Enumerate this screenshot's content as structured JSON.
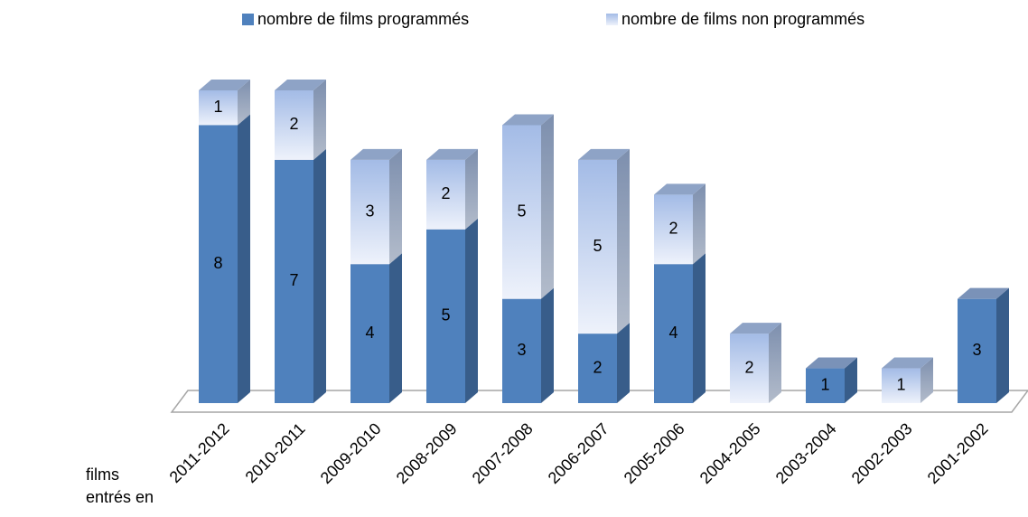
{
  "chart_data": {
    "type": "bar3d_stacked",
    "categories": [
      "2011-2012",
      "2010-2011",
      "2009-2010",
      "2008-2009",
      "2007-2008",
      "2006-2007",
      "2005-2006",
      "2004-2005",
      "2003-2004",
      "2002-2003",
      "2001-2002"
    ],
    "series": [
      {
        "name": "nombre de films programmés",
        "color": "#4f81bd",
        "values": [
          8,
          7,
          4,
          5,
          3,
          2,
          4,
          null,
          1,
          null,
          3
        ]
      },
      {
        "name": "nombre de films non programmés",
        "color": "#b9cbee",
        "values": [
          1,
          2,
          3,
          2,
          5,
          5,
          2,
          2,
          null,
          1,
          null
        ]
      }
    ],
    "ylim": [
      0,
      9
    ],
    "x_label": "films entrés en",
    "legend": "top"
  }
}
